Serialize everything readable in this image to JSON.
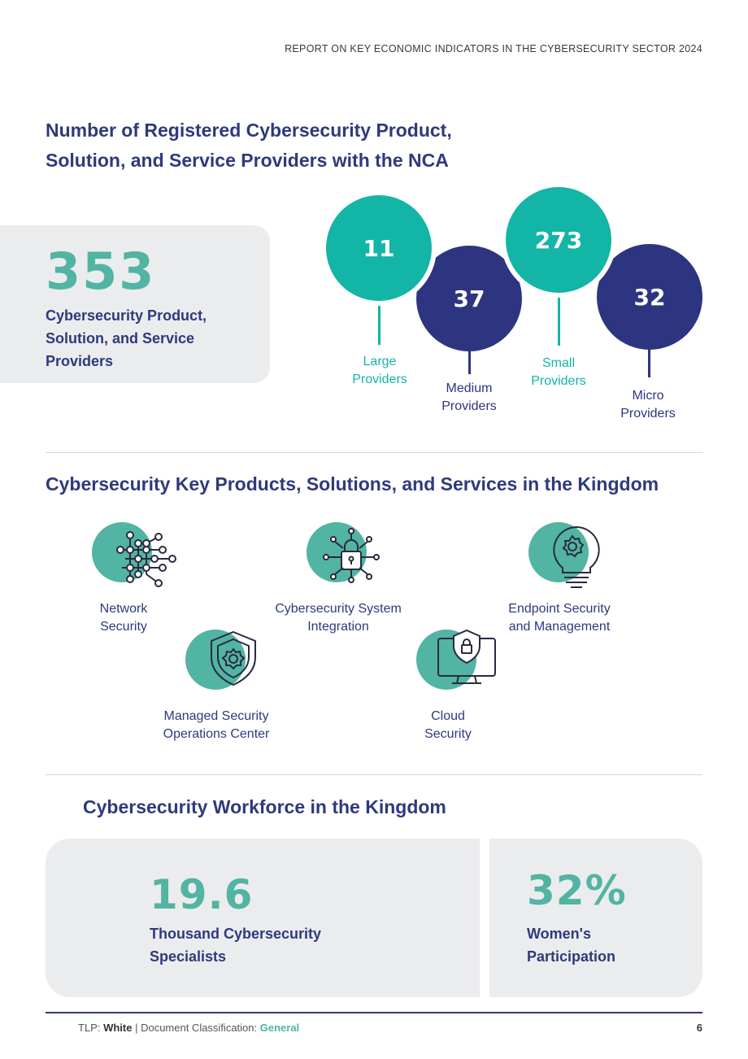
{
  "header": {
    "report_title": "REPORT ON KEY ECONOMIC INDICATORS IN THE CYBERSECURITY SECTOR 2024"
  },
  "providers_section": {
    "title": "Number of Registered Cybersecurity Product, Solution, and Service Providers with the NCA",
    "total": {
      "value": "353",
      "label": "Cybersecurity Product, Solution, and Service Providers"
    },
    "categories": [
      {
        "value": "11",
        "label": "Large Providers",
        "color": "#13b5a6"
      },
      {
        "value": "37",
        "label": "Medium Providers",
        "color": "#2e3580"
      },
      {
        "value": "273",
        "label": "Small Providers",
        "color": "#13b5a6"
      },
      {
        "value": "32",
        "label": "Micro Providers",
        "color": "#2e3580"
      }
    ]
  },
  "services_section": {
    "title": "Cybersecurity Key Products, Solutions, and Services in the Kingdom",
    "items": [
      {
        "label": "Network Security",
        "icon": "network-icon"
      },
      {
        "label": "Managed Security Operations Center",
        "icon": "shield-gear-icon"
      },
      {
        "label": "Cybersecurity System Integration",
        "icon": "lock-network-icon"
      },
      {
        "label": "Cloud Security",
        "icon": "monitor-shield-icon"
      },
      {
        "label": "Endpoint Security and Management",
        "icon": "lightbulb-gear-icon"
      }
    ]
  },
  "workforce_section": {
    "title": "Cybersecurity Workforce in the Kingdom",
    "specialists": {
      "value": "19.6",
      "label": "Thousand Cybersecurity Specialists"
    },
    "women": {
      "value": "32%",
      "label": "Women's Participation"
    }
  },
  "footer": {
    "tlp_prefix": "TLP: ",
    "tlp_value": "White",
    "classification_prefix": " | Document Classification: ",
    "classification_value": "General",
    "page_number": "6"
  },
  "colors": {
    "teal": "#13b5a6",
    "navy": "#2e3580",
    "accent_green": "#52b4a2"
  }
}
